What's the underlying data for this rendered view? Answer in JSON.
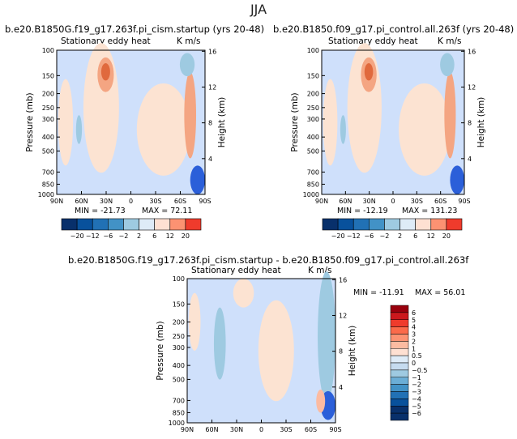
{
  "figure_title": "JJA",
  "colors": {
    "cold": "#2b5fd9",
    "light_cold": "#cfe0fb",
    "warm": "#e0693d",
    "light_warm": "#fce3d2"
  },
  "panels": [
    {
      "title": "b.e20.B1850G.f19_g17.263f.pi_cism.startup (yrs 20-48)",
      "subtitle": "Stationary eddy heat",
      "units": "K m/s",
      "min_text": "MIN = -21.73",
      "max_text": "MAX = 72.11"
    },
    {
      "title": "b.e20.B1850.f09_g17.pi_control.all.263f (yrs 20-48)",
      "subtitle": "Stationary eddy heat",
      "units": "K m/s",
      "min_text": "MIN = -12.19",
      "max_text": "MAX = 131.23"
    },
    {
      "title": "b.e20.B1850G.f19_g17.263f.pi_cism.startup - b.e20.B1850.f09_g17.pi_control.all.263f",
      "subtitle": "Stationary eddy heat",
      "units": "K m/s",
      "min_text": "MIN = -11.91",
      "max_text": "MAX = 56.01"
    }
  ],
  "chart_data": [
    {
      "type": "heatmap",
      "title": "b.e20.B1850G.f19_g17.263f.pi_cism.startup (yrs 20-48)",
      "subtitle": "Stationary eddy heat",
      "units": "K m/s",
      "xlabel": "",
      "ylabel": "Pressure (mb)",
      "y2label": "Height (km)",
      "x_ticks": [
        "90N",
        "60N",
        "30N",
        "0",
        "30S",
        "60S",
        "90S"
      ],
      "y_ticks": [
        "100",
        "150",
        "200",
        "250",
        "300",
        "400",
        "500",
        "700",
        "850",
        "1000"
      ],
      "y_tick_values": [
        100,
        150,
        200,
        250,
        300,
        400,
        500,
        700,
        850,
        1000
      ],
      "y2_ticks": [
        "16",
        "12",
        "8",
        "4"
      ],
      "y2_tick_values": [
        16,
        12,
        8,
        4
      ],
      "ylim": [
        1000,
        100
      ],
      "min": -21.73,
      "max": 72.11,
      "colorbar_levels": [
        -20,
        -12,
        -6,
        -2,
        2,
        6,
        12,
        20
      ]
    },
    {
      "type": "heatmap",
      "title": "b.e20.B1850.f09_g17.pi_control.all.263f (yrs 20-48)",
      "subtitle": "Stationary eddy heat",
      "units": "K m/s",
      "xlabel": "",
      "ylabel": "Pressure (mb)",
      "y2label": "Height (km)",
      "x_ticks": [
        "90N",
        "60N",
        "30N",
        "0",
        "30S",
        "60S",
        "90S"
      ],
      "y_ticks": [
        "100",
        "150",
        "200",
        "250",
        "300",
        "400",
        "500",
        "700",
        "850",
        "1000"
      ],
      "y_tick_values": [
        100,
        150,
        200,
        250,
        300,
        400,
        500,
        700,
        850,
        1000
      ],
      "y2_ticks": [
        "16",
        "12",
        "8",
        "4"
      ],
      "y2_tick_values": [
        16,
        12,
        8,
        4
      ],
      "ylim": [
        1000,
        100
      ],
      "min": -12.19,
      "max": 131.23,
      "colorbar_levels": [
        -20,
        -12,
        -6,
        -2,
        2,
        6,
        12,
        20
      ]
    },
    {
      "type": "heatmap",
      "title": "b.e20.B1850G.f19_g17.263f.pi_cism.startup - b.e20.B1850.f09_g17.pi_control.all.263f",
      "subtitle": "Stationary eddy heat",
      "units": "K m/s",
      "xlabel": "",
      "ylabel": "Pressure (mb)",
      "y2label": "Height (km)",
      "x_ticks": [
        "90N",
        "60N",
        "30N",
        "0",
        "30S",
        "60S",
        "90S"
      ],
      "y_ticks": [
        "100",
        "150",
        "200",
        "250",
        "300",
        "400",
        "500",
        "700",
        "850",
        "1000"
      ],
      "y_tick_values": [
        100,
        150,
        200,
        250,
        300,
        400,
        500,
        700,
        850,
        1000
      ],
      "y2_ticks": [
        "16",
        "12",
        "8",
        "4"
      ],
      "y2_tick_values": [
        16,
        12,
        8,
        4
      ],
      "ylim": [
        1000,
        100
      ],
      "min": -11.91,
      "max": 56.01,
      "colorbar_levels": [
        -6,
        -5,
        -4,
        -3,
        -2,
        -1,
        -0.5,
        0,
        0.5,
        1,
        2,
        3,
        4,
        5,
        6
      ],
      "colorbar_labels": [
        "6",
        "5",
        "4",
        "3",
        "2",
        "1",
        "0.5",
        "0",
        "−0.5",
        "−1",
        "−2",
        "−3",
        "−4",
        "−5",
        "−6"
      ]
    }
  ]
}
